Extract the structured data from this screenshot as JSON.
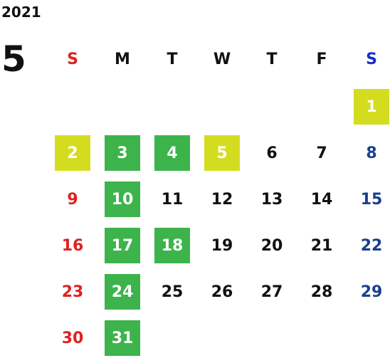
{
  "year": "2021",
  "month": "5",
  "colors": {
    "sunday": "#e02020",
    "saturday_header": "#1530c8",
    "saturday": "#1a3f8f",
    "weekday": "#111111",
    "holiday_bg": "#3cb44b",
    "special_bg": "#d4dc20",
    "highlight_text": "#ffffff"
  },
  "weekdays": [
    "S",
    "M",
    "T",
    "W",
    "T",
    "F",
    "S"
  ],
  "weeks": [
    [
      null,
      null,
      null,
      null,
      null,
      null,
      {
        "d": "1",
        "bg": "special"
      }
    ],
    [
      {
        "d": "2",
        "bg": "special"
      },
      {
        "d": "3",
        "bg": "holiday"
      },
      {
        "d": "4",
        "bg": "holiday"
      },
      {
        "d": "5",
        "bg": "special"
      },
      {
        "d": "6"
      },
      {
        "d": "7"
      },
      {
        "d": "8"
      }
    ],
    [
      {
        "d": "9"
      },
      {
        "d": "10",
        "bg": "holiday"
      },
      {
        "d": "11"
      },
      {
        "d": "12"
      },
      {
        "d": "13"
      },
      {
        "d": "14"
      },
      {
        "d": "15"
      }
    ],
    [
      {
        "d": "16"
      },
      {
        "d": "17",
        "bg": "holiday"
      },
      {
        "d": "18",
        "bg": "holiday"
      },
      {
        "d": "19"
      },
      {
        "d": "20"
      },
      {
        "d": "21"
      },
      {
        "d": "22"
      }
    ],
    [
      {
        "d": "23"
      },
      {
        "d": "24",
        "bg": "holiday"
      },
      {
        "d": "25"
      },
      {
        "d": "26"
      },
      {
        "d": "27"
      },
      {
        "d": "28"
      },
      {
        "d": "29"
      }
    ],
    [
      {
        "d": "30"
      },
      {
        "d": "31",
        "bg": "holiday"
      },
      null,
      null,
      null,
      null,
      null
    ]
  ]
}
